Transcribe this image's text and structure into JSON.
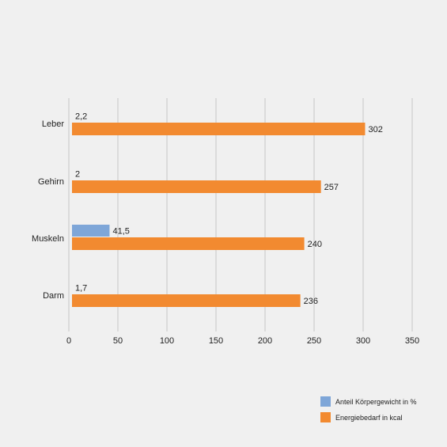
{
  "chart_data": {
    "type": "bar",
    "orientation": "horizontal",
    "title": "",
    "xlabel": "",
    "ylabel": "",
    "categories": [
      "Leber",
      "Gehirn",
      "Muskeln",
      "Darm"
    ],
    "series": [
      {
        "name": "Anteil Körpergewicht in %",
        "color": "#7ea6d8",
        "values": [
          2.2,
          2,
          41.5,
          1.7
        ],
        "labels": [
          "2,2",
          "2",
          "41,5",
          "1,7"
        ]
      },
      {
        "name": "Energiebedarf in kcal",
        "color": "#f28a30",
        "values": [
          302,
          257,
          240,
          236
        ],
        "labels": [
          "302",
          "257",
          "240",
          "236"
        ]
      }
    ],
    "xlim": [
      0,
      350
    ],
    "xticks": [
      0,
      50,
      100,
      150,
      200,
      250,
      300,
      350
    ],
    "xtick_labels": [
      "0",
      "50",
      "100",
      "150",
      "200",
      "250",
      "300",
      "350"
    ],
    "grid": true,
    "legend_position": "bottom-right"
  }
}
